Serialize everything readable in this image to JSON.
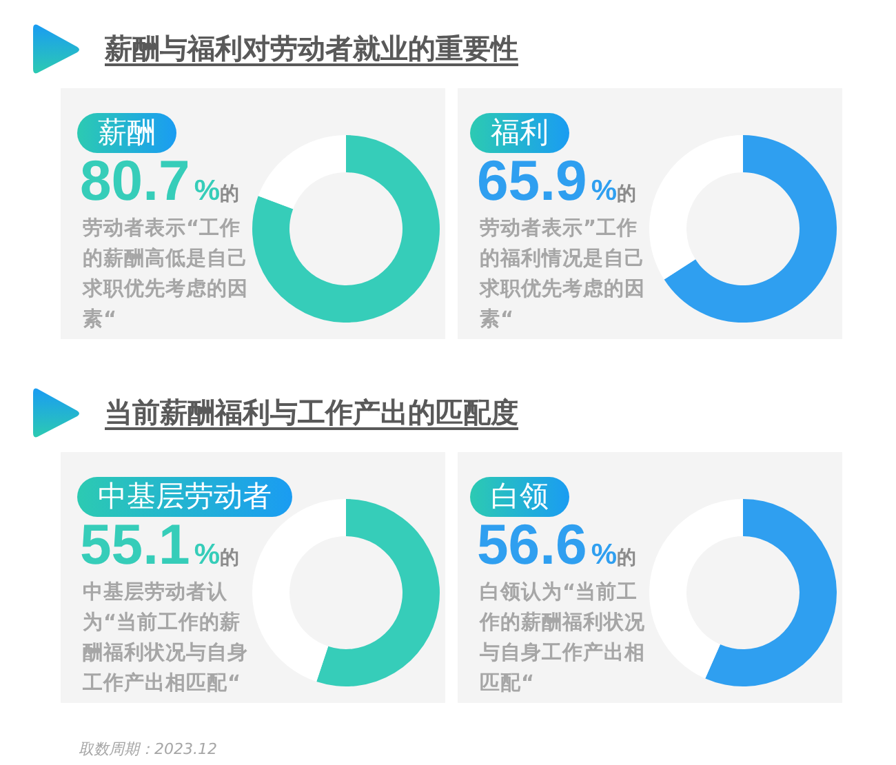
{
  "chart_data": [
    {
      "type": "other",
      "title": "薪酬与福利对劳动者就业的重要性"
    },
    {
      "type": "donut",
      "title": "薪酬",
      "subtitle": "劳动者表示“工作的薪酬高低是自己求职优先考虑的因素“",
      "categories": [
        null,
        null
      ],
      "values": [
        80.7,
        19.3
      ],
      "colors": [
        "#36cdb9",
        "#ffffff"
      ],
      "annotations": [
        "80.7%的"
      ]
    },
    {
      "type": "donut",
      "title": "福利",
      "subtitle": "劳动者表示”工作的福利情况是自己求职优先考虑的因素“",
      "categories": [
        null,
        null
      ],
      "values": [
        65.9,
        34.1
      ],
      "colors": [
        "#2f9ff0",
        "#ffffff"
      ],
      "annotations": [
        "65.9%的"
      ]
    },
    {
      "type": "other",
      "title": "当前薪酬福利与工作产出的匹配度"
    },
    {
      "type": "donut",
      "title": "中基层劳动者",
      "subtitle": "中基层劳动者认为“当前工作的薪酬福利状况与自身工作产出相匹配“",
      "categories": [
        null,
        null
      ],
      "values": [
        55.1,
        44.9
      ],
      "colors": [
        "#36cdb9",
        "#ffffff"
      ],
      "annotations": [
        "55.1%的"
      ]
    },
    {
      "type": "donut",
      "title": "白领",
      "subtitle": "白领认为“当前工作的薪酬福利状况与自身工作产出相匹配“",
      "categories": [
        null,
        null
      ],
      "values": [
        56.6,
        43.4
      ],
      "colors": [
        "#2f9ff0",
        "#ffffff"
      ],
      "annotations": [
        "56.6%的"
      ]
    },
    {
      "type": "other",
      "annotations": [
        "取数周期：2023.12"
      ]
    }
  ]
}
